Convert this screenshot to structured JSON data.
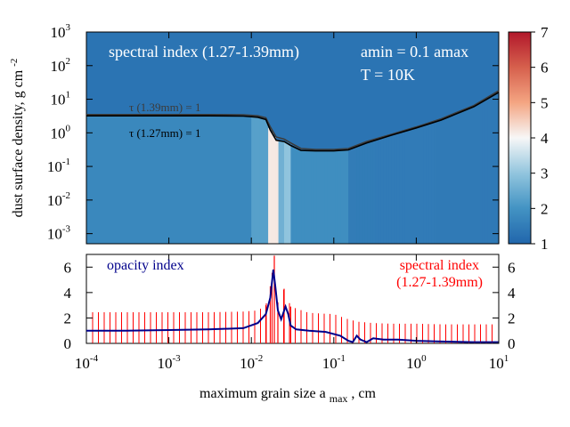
{
  "chart_data": [
    {
      "type": "heatmap",
      "title": "",
      "xlabel": "maximum grain size a max , cm",
      "ylabel": "dust surface density, g cm-2",
      "x_scale": "log",
      "xlim": [
        0.0001,
        10
      ],
      "y_scale": "log",
      "ylim": [
        0.0005,
        1000
      ],
      "ytick_exponents": [
        "3",
        "2",
        "1",
        "0",
        "-1",
        "-2",
        "-3"
      ],
      "colorbar": {
        "min": 1,
        "max": 7,
        "ticks": [
          "7",
          "6",
          "5",
          "4",
          "3",
          "2",
          "1"
        ]
      },
      "annotations": {
        "spectral_index": "spectral index (1.27-1.39mm)",
        "amin": "amin = 0.1 amax",
        "temperature": "T = 10K",
        "tau_139": "τ (1.39mm) = 1",
        "tau_127": "τ (1.27mm) = 1"
      },
      "tau_139_curve": {
        "x": [
          0.0001,
          0.0003,
          0.001,
          0.003,
          0.008,
          0.012,
          0.015,
          0.017,
          0.02,
          0.025,
          0.03,
          0.04,
          0.06,
          0.1,
          0.15,
          0.25,
          0.5,
          1,
          2,
          5,
          10
        ],
        "y": [
          3.5,
          3.5,
          3.5,
          3.5,
          3.45,
          3.2,
          2.8,
          1.5,
          0.75,
          0.65,
          0.5,
          0.34,
          0.32,
          0.32,
          0.34,
          0.55,
          0.9,
          1.5,
          2.6,
          6.5,
          18
        ]
      },
      "tau_127_curve": {
        "x": [
          0.0001,
          0.0003,
          0.001,
          0.003,
          0.008,
          0.012,
          0.015,
          0.017,
          0.02,
          0.025,
          0.03,
          0.04,
          0.06,
          0.1,
          0.15,
          0.25,
          0.5,
          1,
          2,
          5,
          10
        ],
        "y": [
          3.2,
          3.2,
          3.2,
          3.2,
          3.15,
          2.9,
          2.5,
          1.2,
          0.6,
          0.55,
          0.42,
          0.3,
          0.29,
          0.29,
          0.31,
          0.5,
          0.85,
          1.4,
          2.4,
          6.0,
          16
        ]
      },
      "hot_band": {
        "x": [
          0.016,
          0.021
        ],
        "index": 4.3
      },
      "ytick_labels": [
        "10",
        "10",
        "10",
        "10",
        "10",
        "10",
        "10"
      ],
      "cells": [
        {
          "x": [
            0.0001,
            0.01
          ],
          "index": 1.9
        },
        {
          "x": [
            0.01,
            0.016
          ],
          "index": 2.4
        },
        {
          "x": [
            0.021,
            0.025
          ],
          "index": 2.7
        },
        {
          "x": [
            0.025,
            0.03
          ],
          "index": 3.1
        },
        {
          "x": [
            0.03,
            0.15
          ],
          "index": 2.0
        },
        {
          "x": [
            0.15,
            10
          ],
          "index": 1.6
        }
      ],
      "optically_thick_index": 1.3
    },
    {
      "type": "line",
      "xlabel": "maximum grain size a max , cm",
      "x_scale": "log",
      "xlim": [
        0.0001,
        10
      ],
      "ylim": [
        0,
        7
      ],
      "yticks_left": [
        "0",
        "2",
        "4",
        "6"
      ],
      "yticks_right": [
        "0",
        "2",
        "4",
        "6"
      ],
      "xtick_exponents": [
        "-4",
        "-3",
        "-2",
        "-1",
        "0",
        "1"
      ],
      "xtick_labels": [
        "10",
        "10",
        "10",
        "10",
        "10",
        "10"
      ],
      "series": [
        {
          "name": "opacity index",
          "color": "#00008b",
          "x": [
            0.0001,
            0.0003,
            0.001,
            0.003,
            0.008,
            0.012,
            0.015,
            0.017,
            0.0185,
            0.0195,
            0.021,
            0.023,
            0.026,
            0.028,
            0.03,
            0.035,
            0.05,
            0.08,
            0.12,
            0.15,
            0.17,
            0.19,
            0.21,
            0.25,
            0.3,
            0.4,
            0.6,
            1,
            2,
            5,
            10
          ],
          "y": [
            1.0,
            1.0,
            1.05,
            1.1,
            1.2,
            1.6,
            2.3,
            3.6,
            5.8,
            4.5,
            2.6,
            1.9,
            2.9,
            2.3,
            1.4,
            1.1,
            1.0,
            0.9,
            0.6,
            0.2,
            0.1,
            0.6,
            0.3,
            0.1,
            0.4,
            0.3,
            0.3,
            0.2,
            0.15,
            0.1,
            0.1
          ]
        },
        {
          "name": "spectral index (1.27-1.39mm)",
          "color": "#ff0000",
          "x": [
            0.0001,
            0.0003,
            0.001,
            0.003,
            0.008,
            0.012,
            0.015,
            0.017,
            0.019,
            0.021,
            0.025,
            0.03,
            0.05,
            0.1,
            0.15,
            0.2,
            0.3,
            0.5,
            1,
            2,
            5,
            10
          ],
          "y": [
            2.45,
            2.45,
            2.45,
            2.45,
            2.5,
            2.6,
            3.0,
            4.5,
            6.9,
            3.2,
            4.3,
            2.9,
            2.4,
            2.3,
            1.9,
            1.7,
            1.6,
            1.55,
            1.55,
            1.5,
            1.5,
            1.5
          ]
        }
      ],
      "legend": {
        "placement": "top"
      }
    }
  ]
}
